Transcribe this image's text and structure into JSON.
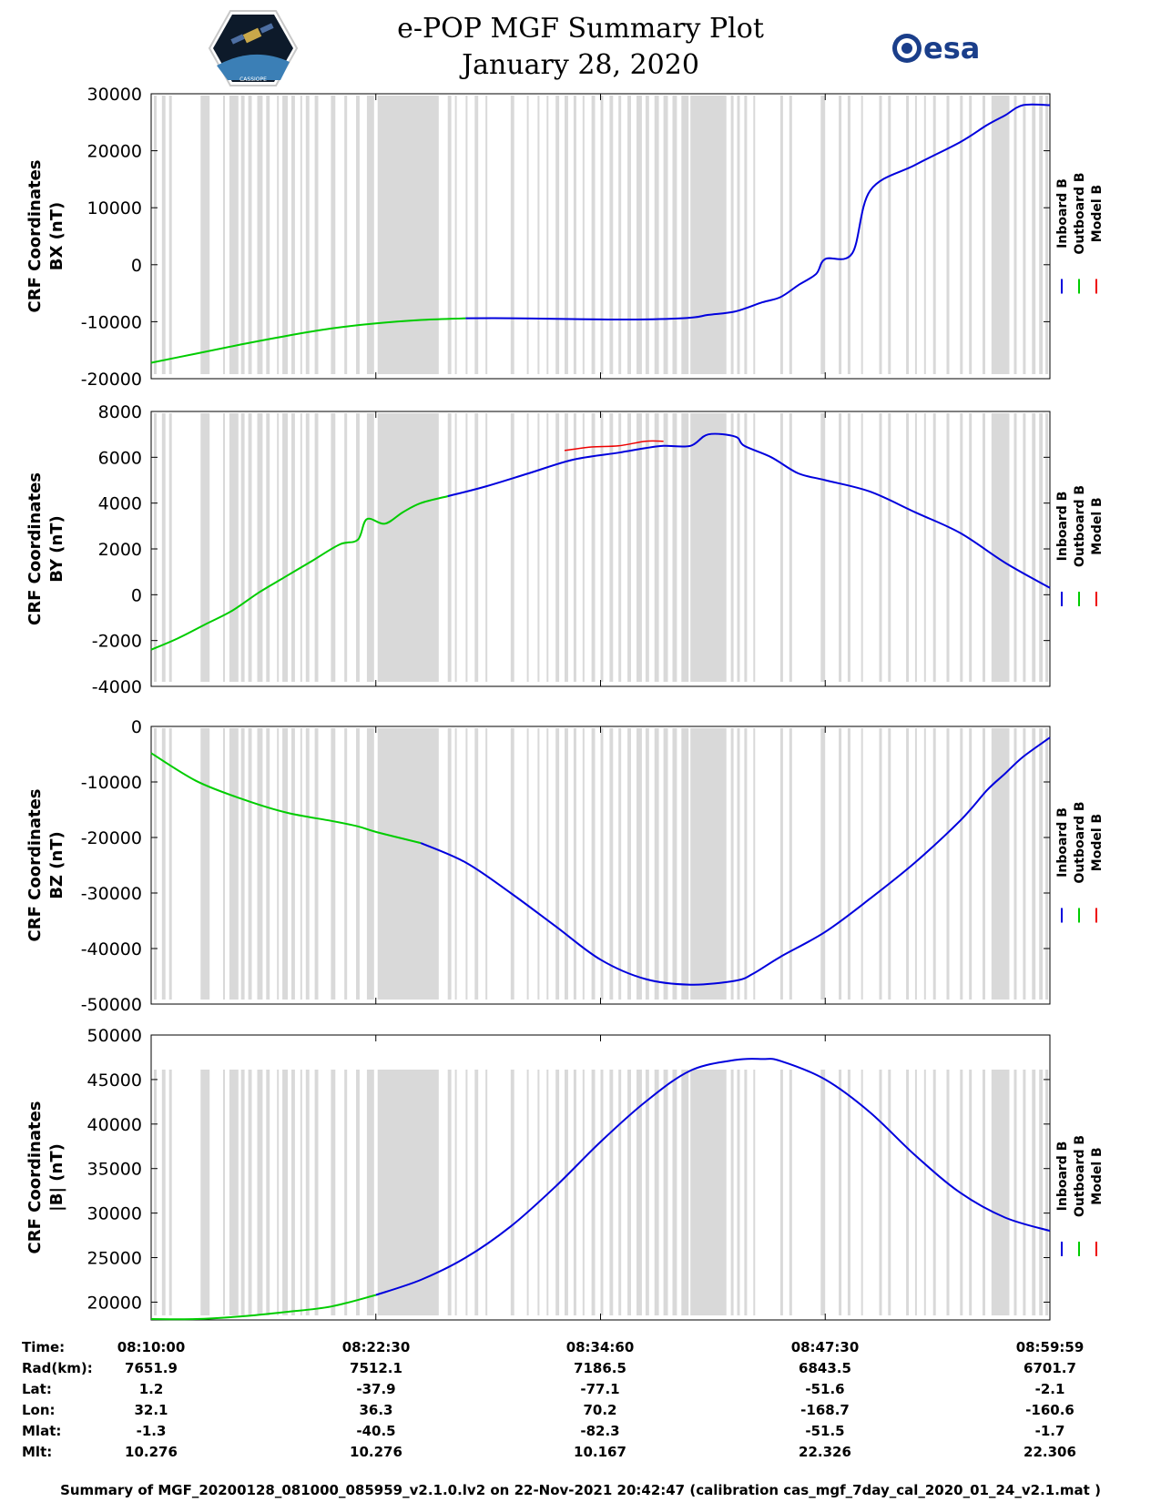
{
  "header": {
    "title": "e-POP MGF Summary Plot",
    "date": "January 28, 2020",
    "esa_logo_text": "esa",
    "mission_logo_text": "CASSIOPE"
  },
  "colors": {
    "inboard": "#0000dd",
    "outboard": "#00cc00",
    "model": "#ee0000",
    "gap_shade": "#d9d9d9"
  },
  "legend": {
    "labels": [
      "Inboard B",
      "Outboard B",
      "Model B"
    ]
  },
  "chart_data": [
    {
      "type": "line",
      "id": "bx",
      "ylabel_line1": "CRF Coordinates",
      "ylabel_line2": "BX (nT)",
      "ylim": [
        -20000,
        30000
      ],
      "yticks": [
        30000,
        20000,
        10000,
        0,
        -10000,
        -20000
      ],
      "ytick_labels": [
        "30000",
        "20000",
        "10000",
        "0",
        "-10000",
        "-20000"
      ],
      "series": [
        {
          "name": "Outboard B",
          "color_key": "outboard",
          "x": [
            0,
            0.05,
            0.1,
            0.15,
            0.2,
            0.25,
            0.3,
            0.35,
            0.4,
            0.45,
            0.5
          ],
          "y": [
            -17200,
            -16200,
            -15000,
            -13800,
            -12700,
            -11700,
            -10900,
            -10200,
            -9800,
            -9500,
            -9400
          ]
        },
        {
          "name": "Inboard B",
          "color_key": "inboard",
          "x": [
            0.5,
            0.55,
            0.6,
            0.65,
            0.7,
            0.72,
            0.75,
            0.8,
            0.85,
            0.9,
            0.95,
            1.0
          ],
          "y": [
            -9400,
            -9600,
            -9600,
            -8700,
            -6900,
            -4400,
            -1900,
            2300,
            8000,
            13000,
            18000,
            22200
          ]
        },
        {
          "name": "Inboard B",
          "color_key": "inboard",
          "x": [
            1.0,
            1.05,
            1.1,
            1.15,
            1.2,
            1.25,
            1.3,
            1.35,
            1.4,
            1.45,
            1.5,
            1.55,
            1.6,
            1.65,
            1.7,
            1.75,
            1.8,
            1.85,
            1.9,
            1.95,
            2.0
          ],
          "y": [
            0,
            0,
            0,
            0,
            0,
            0,
            0,
            0,
            0,
            0,
            0,
            0,
            0,
            0,
            0,
            0,
            0,
            0,
            0,
            0,
            0
          ]
        }
      ],
      "curve": {
        "x": [
          0,
          0.05,
          0.1,
          0.15,
          0.2,
          0.25,
          0.3,
          0.35,
          0.4,
          0.45,
          0.5,
          0.55,
          0.6,
          0.62,
          0.65,
          0.68,
          0.7,
          0.72,
          0.74,
          0.75,
          0.78,
          0.8,
          0.85,
          0.9,
          0.95,
          1.0
        ],
        "y": [
          -17200,
          -15600,
          -14000,
          -12500,
          -11200,
          -10300,
          -9700,
          -9400,
          -9400,
          -9500,
          -9600,
          -9600,
          -9300,
          -8800,
          -8200,
          -6600,
          -5700,
          -3600,
          -1600,
          1000,
          2000,
          4000,
          8800,
          13500,
          17500,
          21000
        ],
        "switch_at": 0.37
      },
      "curve_tail": {
        "x": [
          0.8,
          0.85,
          0.9,
          0.93,
          0.95,
          0.97,
          1.0
        ],
        "y": [
          13000,
          17500,
          21500,
          24500,
          26200,
          28000,
          28000
        ]
      }
    },
    {
      "type": "line",
      "id": "by",
      "ylabel_line1": "CRF Coordinates",
      "ylabel_line2": "BY (nT)",
      "ylim": [
        -4000,
        8000
      ],
      "yticks": [
        8000,
        6000,
        4000,
        2000,
        0,
        -2000,
        -4000
      ],
      "ytick_labels": [
        "8000",
        "6000",
        "4000",
        "2000",
        "0",
        "-2000",
        "-4000"
      ],
      "curve": {
        "x": [
          0,
          0.03,
          0.06,
          0.09,
          0.12,
          0.15,
          0.18,
          0.21,
          0.23,
          0.24,
          0.26,
          0.28,
          0.3,
          0.33,
          0.37,
          0.42,
          0.47,
          0.52,
          0.55,
          0.57,
          0.6,
          0.62,
          0.65,
          0.66,
          0.69,
          0.72,
          0.75,
          0.8,
          0.85,
          0.9,
          0.95,
          1.0
        ],
        "y": [
          -2400,
          -1900,
          -1300,
          -700,
          100,
          800,
          1500,
          2200,
          2400,
          3300,
          3100,
          3600,
          4000,
          4300,
          4700,
          5300,
          5900,
          6200,
          6400,
          6500,
          6500,
          7000,
          6900,
          6500,
          6000,
          5300,
          5000,
          4500,
          3600,
          2700,
          1400,
          300
        ],
        "switch_at": 0.33
      },
      "model": {
        "x": [
          0.46,
          0.49,
          0.52,
          0.55,
          0.57
        ],
        "y": [
          6300,
          6450,
          6500,
          6700,
          6700
        ]
      }
    },
    {
      "type": "line",
      "id": "bz",
      "ylabel_line1": "CRF Coordinates",
      "ylabel_line2": "BZ (nT)",
      "ylim": [
        -50000,
        0
      ],
      "yticks": [
        0,
        -10000,
        -20000,
        -30000,
        -40000,
        -50000
      ],
      "ytick_labels": [
        "0",
        "-10000",
        "-20000",
        "-30000",
        "-40000",
        "-50000"
      ],
      "curve": {
        "x": [
          0,
          0.05,
          0.1,
          0.15,
          0.2,
          0.23,
          0.25,
          0.3,
          0.35,
          0.4,
          0.45,
          0.5,
          0.55,
          0.6,
          0.65,
          0.67,
          0.7,
          0.75,
          0.8,
          0.85,
          0.9,
          0.93,
          0.95,
          0.97,
          1.0
        ],
        "y": [
          -4800,
          -9800,
          -13000,
          -15500,
          -17000,
          -18000,
          -19000,
          -21000,
          -24500,
          -30000,
          -36000,
          -42000,
          -45500,
          -46500,
          -45800,
          -44500,
          -41500,
          -37000,
          -31000,
          -24500,
          -17000,
          -11500,
          -8500,
          -5500,
          -2000
        ],
        "switch_at": 0.33
      }
    },
    {
      "type": "line",
      "id": "bmag",
      "ylabel_line1": "CRF Coordinates",
      "ylabel_line2": "|B| (nT)",
      "ylim": [
        18000,
        50000
      ],
      "yticks": [
        50000,
        45000,
        40000,
        35000,
        30000,
        25000,
        20000
      ],
      "ytick_labels": [
        "50000",
        "45000",
        "40000",
        "35000",
        "30000",
        "25000",
        "20000"
      ],
      "curve": {
        "x": [
          0,
          0.05,
          0.1,
          0.15,
          0.2,
          0.25,
          0.3,
          0.35,
          0.4,
          0.45,
          0.5,
          0.55,
          0.6,
          0.65,
          0.68,
          0.7,
          0.75,
          0.8,
          0.85,
          0.9,
          0.95,
          1.0
        ],
        "y": [
          18100,
          18100,
          18400,
          18900,
          19500,
          20800,
          22500,
          25000,
          28500,
          33000,
          38000,
          42500,
          46000,
          47200,
          47300,
          47100,
          45000,
          41300,
          36500,
          32300,
          29500,
          28000
        ],
        "switch_at": 0.28
      }
    }
  ],
  "gap_bands": [
    [
      0.003,
      0.006
    ],
    [
      0.012,
      0.016
    ],
    [
      0.02,
      0.023
    ],
    [
      0.055,
      0.065
    ],
    [
      0.08,
      0.082
    ],
    [
      0.087,
      0.097
    ],
    [
      0.1,
      0.104
    ],
    [
      0.108,
      0.112
    ],
    [
      0.118,
      0.124
    ],
    [
      0.128,
      0.132
    ],
    [
      0.14,
      0.142
    ],
    [
      0.146,
      0.152
    ],
    [
      0.156,
      0.16
    ],
    [
      0.166,
      0.168
    ],
    [
      0.172,
      0.176
    ],
    [
      0.182,
      0.186
    ],
    [
      0.2,
      0.205
    ],
    [
      0.215,
      0.218
    ],
    [
      0.228,
      0.232
    ],
    [
      0.24,
      0.248
    ],
    [
      0.252,
      0.32
    ],
    [
      0.33,
      0.334
    ],
    [
      0.338,
      0.34
    ],
    [
      0.35,
      0.352
    ],
    [
      0.36,
      0.364
    ],
    [
      0.372,
      0.374
    ],
    [
      0.4,
      0.404
    ],
    [
      0.418,
      0.42
    ],
    [
      0.43,
      0.432
    ],
    [
      0.44,
      0.442
    ],
    [
      0.45,
      0.454
    ],
    [
      0.46,
      0.464
    ],
    [
      0.47,
      0.473
    ],
    [
      0.48,
      0.482
    ],
    [
      0.49,
      0.494
    ],
    [
      0.5,
      0.503
    ],
    [
      0.51,
      0.514
    ],
    [
      0.52,
      0.523
    ],
    [
      0.53,
      0.534
    ],
    [
      0.54,
      0.546
    ],
    [
      0.55,
      0.554
    ],
    [
      0.56,
      0.565
    ],
    [
      0.57,
      0.575
    ],
    [
      0.58,
      0.585
    ],
    [
      0.59,
      0.598
    ],
    [
      0.6,
      0.64
    ],
    [
      0.645,
      0.648
    ],
    [
      0.652,
      0.655
    ],
    [
      0.66,
      0.663
    ],
    [
      0.67,
      0.672
    ],
    [
      0.7,
      0.703
    ],
    [
      0.71,
      0.713
    ],
    [
      0.745,
      0.75
    ],
    [
      0.765,
      0.768
    ],
    [
      0.775,
      0.778
    ],
    [
      0.79,
      0.792
    ],
    [
      0.81,
      0.813
    ],
    [
      0.82,
      0.823
    ],
    [
      0.84,
      0.843
    ],
    [
      0.85,
      0.852
    ],
    [
      0.86,
      0.862
    ],
    [
      0.87,
      0.873
    ],
    [
      0.885,
      0.888
    ],
    [
      0.9,
      0.903
    ],
    [
      0.91,
      0.913
    ],
    [
      0.925,
      0.928
    ],
    [
      0.935,
      0.955
    ],
    [
      0.96,
      0.963
    ],
    [
      0.97,
      0.973
    ],
    [
      0.98,
      0.984
    ],
    [
      0.988,
      0.992
    ],
    [
      0.995,
      0.998
    ]
  ],
  "bottom_table": {
    "row_labels": [
      "Time:",
      "Rad(km):",
      "Lat:",
      "Lon:",
      "Mlat:",
      "Mlt:"
    ],
    "columns": [
      [
        "08:10:00",
        "7651.9",
        "1.2",
        "32.1",
        "-1.3",
        "10.276"
      ],
      [
        "08:22:30",
        "7512.1",
        "-37.9",
        "36.3",
        "-40.5",
        "10.276"
      ],
      [
        "08:34:60",
        "7186.5",
        "-77.1",
        "70.2",
        "-82.3",
        "10.167"
      ],
      [
        "08:47:30",
        "6843.5",
        "-51.6",
        "-168.7",
        "-51.5",
        "22.326"
      ],
      [
        "08:59:59",
        "6701.7",
        "-2.1",
        "-160.6",
        "-1.7",
        "22.306"
      ]
    ]
  },
  "footer": "Summary of MGF_20200128_081000_085959_v2.1.0.lv2 on 22-Nov-2021 20:42:47 (calibration cas_mgf_7day_cal_2020_01_24_v2.1.mat )"
}
